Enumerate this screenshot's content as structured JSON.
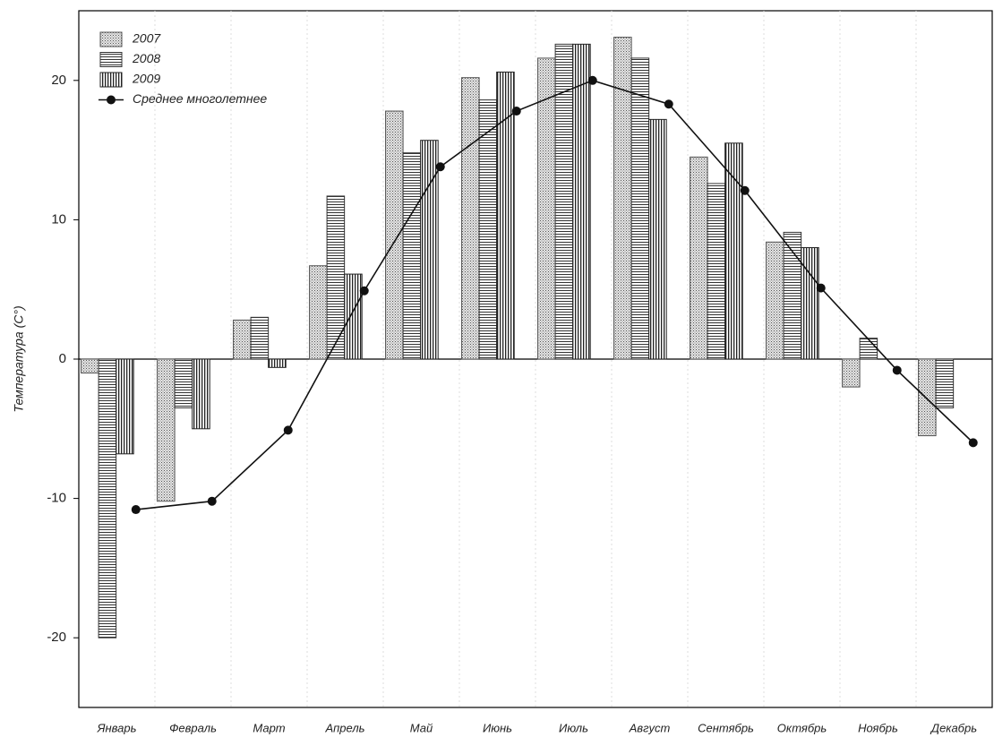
{
  "chart_data": {
    "type": "bar",
    "y_label": "Температура (C°)",
    "categories": [
      "Январь",
      "Февраль",
      "Март",
      "Апрель",
      "Май",
      "Июнь",
      "Июль",
      "Август",
      "Сентябрь",
      "Октябрь",
      "Ноябрь",
      "Декабрь"
    ],
    "series": [
      {
        "name": "2007",
        "type": "bar",
        "pattern": "dots",
        "color": "#555555",
        "values": [
          -1,
          -10.2,
          2.8,
          6.7,
          17.8,
          20.2,
          21.6,
          23.1,
          14.5,
          8.4,
          -2.0,
          -5.5
        ]
      },
      {
        "name": "2008",
        "type": "bar",
        "pattern": "hlines",
        "color": "#333333",
        "values": [
          -20,
          -3.5,
          3.0,
          11.7,
          14.8,
          18.6,
          22.6,
          21.6,
          12.6,
          9.1,
          1.5,
          -3.5
        ]
      },
      {
        "name": "2009",
        "type": "bar",
        "pattern": "vlines",
        "color": "#222222",
        "values": [
          -6.8,
          -5.0,
          -0.6,
          6.1,
          15.7,
          20.6,
          22.6,
          17.2,
          15.5,
          8.0,
          null,
          null
        ]
      },
      {
        "name": "Среднее многолетнее",
        "type": "line",
        "color": "#111111",
        "values": [
          -10.8,
          -10.2,
          -5.1,
          4.9,
          13.8,
          17.8,
          20.0,
          18.3,
          12.1,
          5.1,
          -0.8,
          -6.0
        ]
      }
    ],
    "ylim": [
      -25,
      25
    ],
    "yticks": [
      -20,
      -10,
      0,
      10,
      20
    ],
    "legend": "upper left"
  }
}
